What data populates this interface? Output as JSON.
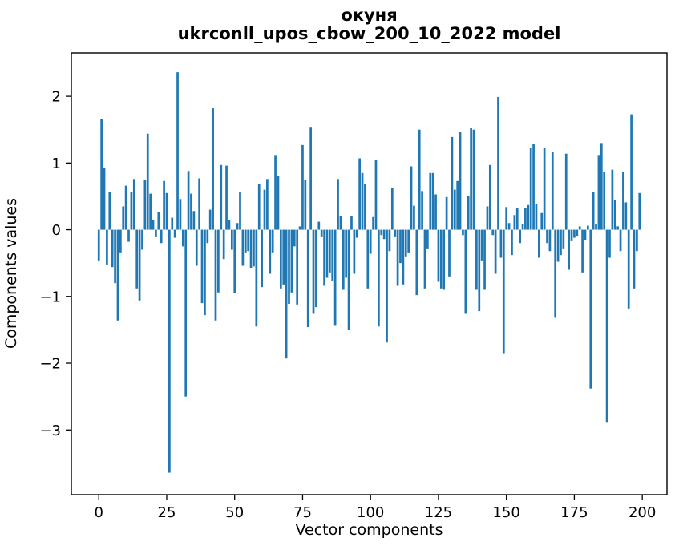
{
  "title": {
    "line1": "окуня",
    "line2": "ukrconll_upos_cbow_200_10_2022 model"
  },
  "axes": {
    "xlabel": "Vector components",
    "ylabel": "Components values"
  },
  "colors": {
    "bar": "#1f77b4",
    "spine": "#000000",
    "text": "#000000",
    "background": "#ffffff"
  },
  "chart_data": {
    "type": "bar",
    "title": "окуня — ukrconll_upos_cbow_200_10_2022 model",
    "xlabel": "Vector components",
    "ylabel": "Components values",
    "x_description": "component index 0–199, bar i centered at x=i",
    "bar_width": 0.8,
    "grid": false,
    "legend": null,
    "xlim": [
      -10.1,
      209.1
    ],
    "ylim": [
      -3.97,
      2.65
    ],
    "x_tick_values": [
      0,
      25,
      50,
      75,
      100,
      125,
      150,
      175,
      200
    ],
    "x_tick_labels": [
      "0",
      "25",
      "50",
      "75",
      "100",
      "125",
      "150",
      "175",
      "200"
    ],
    "y_tick_values": [
      2,
      1,
      0,
      -1,
      -2,
      -3
    ],
    "y_tick_labels": [
      "2",
      "1",
      "0",
      "−1",
      "−2",
      "−3"
    ],
    "values": [
      -0.46,
      1.66,
      0.92,
      -0.52,
      0.56,
      -0.56,
      -0.8,
      -1.36,
      -0.34,
      0.35,
      0.66,
      -0.18,
      0.57,
      0.76,
      -0.88,
      -1.06,
      -0.3,
      0.74,
      1.44,
      0.54,
      0.14,
      -0.1,
      0.26,
      -0.2,
      0.73,
      0.55,
      -3.64,
      0.18,
      -0.12,
      2.36,
      0.46,
      -0.25,
      -2.5,
      0.88,
      0.54,
      0.28,
      -0.54,
      0.77,
      -1.1,
      -1.28,
      -0.2,
      0.3,
      1.82,
      -1.36,
      -0.94,
      0.97,
      -0.44,
      0.96,
      0.15,
      -0.3,
      -0.95,
      0.1,
      0.56,
      -0.54,
      -0.34,
      -0.32,
      -0.57,
      -0.55,
      -1.45,
      0.69,
      -0.86,
      0.6,
      0.76,
      -0.66,
      -0.34,
      1.12,
      0.81,
      -0.88,
      -0.82,
      -1.93,
      -1.11,
      -0.94,
      -0.25,
      -1.12,
      0.05,
      1.27,
      0.75,
      -1.46,
      1.53,
      -1.26,
      -1.16,
      0.12,
      -0.1,
      -0.84,
      -0.72,
      -0.64,
      -0.77,
      -1.44,
      0.76,
      0.2,
      -0.9,
      -0.72,
      -1.5,
      0.21,
      -0.66,
      -0.12,
      1.07,
      0.85,
      0.69,
      -0.88,
      -0.36,
      0.19,
      1.05,
      -1.45,
      -0.08,
      -0.14,
      -1.69,
      -0.32,
      0.63,
      -0.1,
      -0.84,
      -0.5,
      -0.82,
      -0.4,
      -0.34,
      0.95,
      0.36,
      -0.98,
      1.5,
      0.58,
      -0.88,
      -0.28,
      0.85,
      0.85,
      0.53,
      -0.78,
      -0.88,
      -0.9,
      0.49,
      -0.7,
      1.39,
      0.6,
      0.73,
      1.46,
      -0.08,
      -1.26,
      0.5,
      1.52,
      1.5,
      -0.9,
      -1.22,
      -0.46,
      -0.9,
      0.35,
      0.97,
      -0.08,
      -0.66,
      1.99,
      -0.42,
      -1.85,
      0.34,
      0.1,
      -0.38,
      0.22,
      0.33,
      -0.2,
      0.08,
      0.33,
      0.37,
      1.22,
      1.29,
      0.39,
      -0.42,
      0.25,
      1.23,
      -0.2,
      -0.32,
      1.16,
      -1.32,
      -0.48,
      -0.38,
      -0.28,
      1.14,
      -0.6,
      -0.16,
      -0.12,
      -0.09,
      0.05,
      -0.64,
      -0.15,
      0.06,
      -2.38,
      0.57,
      0.08,
      1.12,
      1.3,
      0.87,
      -2.88,
      -0.42,
      0.9,
      0.44,
      0.05,
      -0.32,
      0.87,
      0.41,
      -1.18,
      1.73,
      -0.88,
      -0.32,
      0.55
    ]
  }
}
